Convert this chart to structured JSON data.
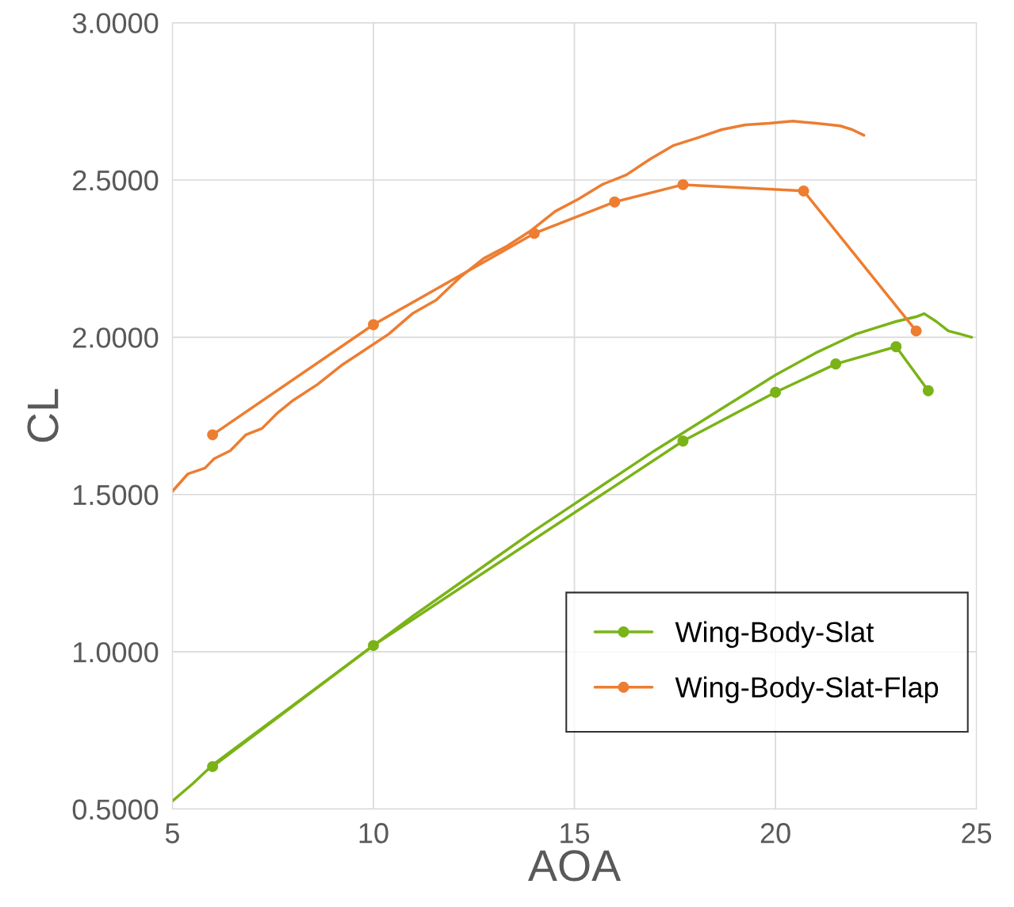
{
  "chart_data": {
    "type": "line",
    "xlabel": "AOA",
    "ylabel": "CL",
    "xlim": [
      5,
      25
    ],
    "xticks": [
      5,
      10,
      15,
      20,
      25
    ],
    "ylim": [
      0.5,
      3.0
    ],
    "yticks": [
      {
        "value": 0.5,
        "label": "0.5000"
      },
      {
        "value": 1.0,
        "label": "1.0000"
      },
      {
        "value": 1.5,
        "label": "1.5000"
      },
      {
        "value": 2.0,
        "label": "2.0000"
      },
      {
        "value": 2.5,
        "label": "2.5000"
      },
      {
        "value": 3.0,
        "label": "3.0000"
      }
    ],
    "grid": true,
    "legend": "bottom right",
    "series": [
      {
        "color": "#7ab317",
        "marker": "none",
        "x": [
          5,
          5.5,
          6,
          7,
          8,
          9,
          10,
          11,
          12,
          13,
          14,
          15,
          16,
          17,
          18,
          19,
          20,
          21,
          21.5,
          22,
          22.5,
          23,
          23.5,
          23.7,
          24,
          24.3,
          24.6,
          24.88
        ],
        "values": [
          0.525,
          0.58,
          0.64,
          0.735,
          0.83,
          0.925,
          1.02,
          1.115,
          1.205,
          1.295,
          1.385,
          1.47,
          1.555,
          1.64,
          1.72,
          1.8,
          1.88,
          1.95,
          1.98,
          2.01,
          2.03,
          2.05,
          2.065,
          2.075,
          2.05,
          2.02,
          2.01,
          2.0
        ]
      },
      {
        "color": "#ed7d31",
        "marker": "none",
        "x": [
          5,
          5.39,
          5.81,
          6.04,
          6.44,
          6.83,
          7.23,
          7.62,
          8.01,
          8.61,
          9.2,
          9.79,
          10.38,
          10.97,
          11.56,
          12.15,
          12.74,
          13.33,
          13.93,
          14.52,
          15.11,
          15.7,
          16.29,
          16.88,
          17.47,
          18.06,
          18.66,
          19.25,
          19.84,
          20.43,
          21.02,
          21.61,
          21.91,
          22.2
        ],
        "values": [
          1.51,
          1.566,
          1.584,
          1.614,
          1.639,
          1.69,
          1.71,
          1.76,
          1.8,
          1.85,
          1.91,
          1.96,
          2.01,
          2.075,
          2.118,
          2.19,
          2.25,
          2.29,
          2.34,
          2.4,
          2.44,
          2.486,
          2.516,
          2.566,
          2.61,
          2.634,
          2.66,
          2.675,
          2.68,
          2.687,
          2.68,
          2.672,
          2.66,
          2.642
        ]
      },
      {
        "name": "Wing-Body-Slat",
        "color": "#7ab317",
        "marker": "circle",
        "x": [
          6,
          10,
          17.7,
          20,
          21.5,
          23,
          23.8
        ],
        "values": [
          0.635,
          1.02,
          1.67,
          1.825,
          1.915,
          1.97,
          1.83
        ]
      },
      {
        "name": "Wing-Body-Slat-Flap",
        "color": "#ed7d31",
        "marker": "circle",
        "x": [
          6,
          10,
          14,
          16,
          17.7,
          20.7,
          23.5
        ],
        "values": [
          1.69,
          2.04,
          2.33,
          2.43,
          2.485,
          2.465,
          2.02
        ]
      }
    ]
  }
}
